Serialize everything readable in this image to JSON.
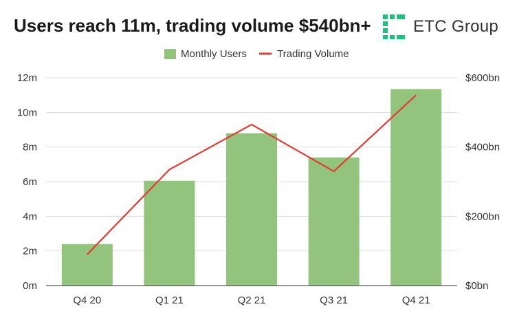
{
  "header": {
    "title": "Users reach 11m, trading volume $540bn+",
    "logo_text": "ETC Group",
    "logo_color": "#19c37d"
  },
  "chart_data": {
    "type": "bar",
    "categories": [
      "Q4 20",
      "Q1 21",
      "Q2 21",
      "Q3 21",
      "Q4 21"
    ],
    "series": [
      {
        "name": "Monthly Users",
        "type": "bar",
        "axis": "left",
        "color": "#93c47d",
        "values": [
          2.4,
          6.05,
          8.8,
          7.4,
          11.35
        ]
      },
      {
        "name": "Trading Volume",
        "type": "line",
        "axis": "right",
        "color": "#e53935",
        "values": [
          90,
          335,
          465,
          330,
          550
        ]
      }
    ],
    "y_left": {
      "min": 0,
      "max": 12,
      "ticks": [
        0,
        2,
        4,
        6,
        8,
        10,
        12
      ],
      "tick_labels": [
        "0m",
        "2m",
        "4m",
        "6m",
        "8m",
        "10m",
        "12m"
      ]
    },
    "y_right": {
      "min": 0,
      "max": 600,
      "ticks": [
        0,
        200,
        400,
        600
      ],
      "tick_labels": [
        "$0bn",
        "$200bn",
        "$400bn",
        "$600bn"
      ]
    },
    "legend": {
      "position": "top-center"
    },
    "grid": true
  }
}
